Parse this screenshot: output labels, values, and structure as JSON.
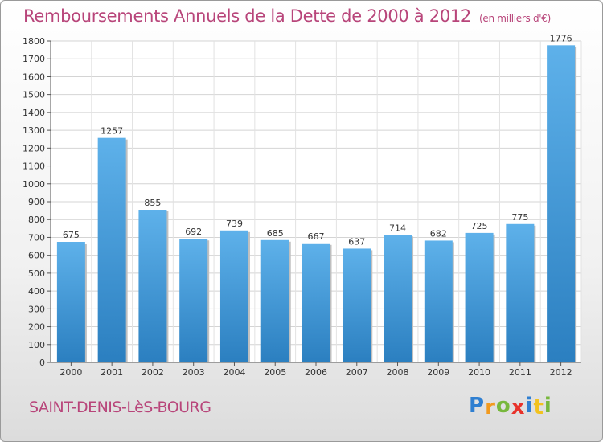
{
  "title": "Remboursements Annuels de la Dette de 2000 à 2012",
  "unit": "(en milliers d'€)",
  "place": "SAINT-DENIS-LèS-BOURG",
  "logo": {
    "letters": [
      "P",
      "r",
      "o",
      "x",
      "i",
      "t",
      "i"
    ],
    "colors": [
      "#2f7fd1",
      "#f29a1e",
      "#78b83c",
      "#e8322a",
      "#2f7fd1",
      "#f2c21e",
      "#78b83c"
    ]
  },
  "chart_data": {
    "type": "bar",
    "categories": [
      "2000",
      "2001",
      "2002",
      "2003",
      "2004",
      "2005",
      "2006",
      "2007",
      "2008",
      "2009",
      "2010",
      "2011",
      "2012"
    ],
    "values": [
      675,
      1257,
      855,
      692,
      739,
      685,
      667,
      637,
      714,
      682,
      725,
      775,
      1776
    ],
    "ylim": [
      0,
      1800
    ],
    "yticks": [
      0,
      100,
      200,
      300,
      400,
      500,
      600,
      700,
      800,
      900,
      1000,
      1100,
      1200,
      1300,
      1400,
      1500,
      1600,
      1700,
      1800
    ],
    "grid": true,
    "bar_color": "#3d95d8"
  }
}
